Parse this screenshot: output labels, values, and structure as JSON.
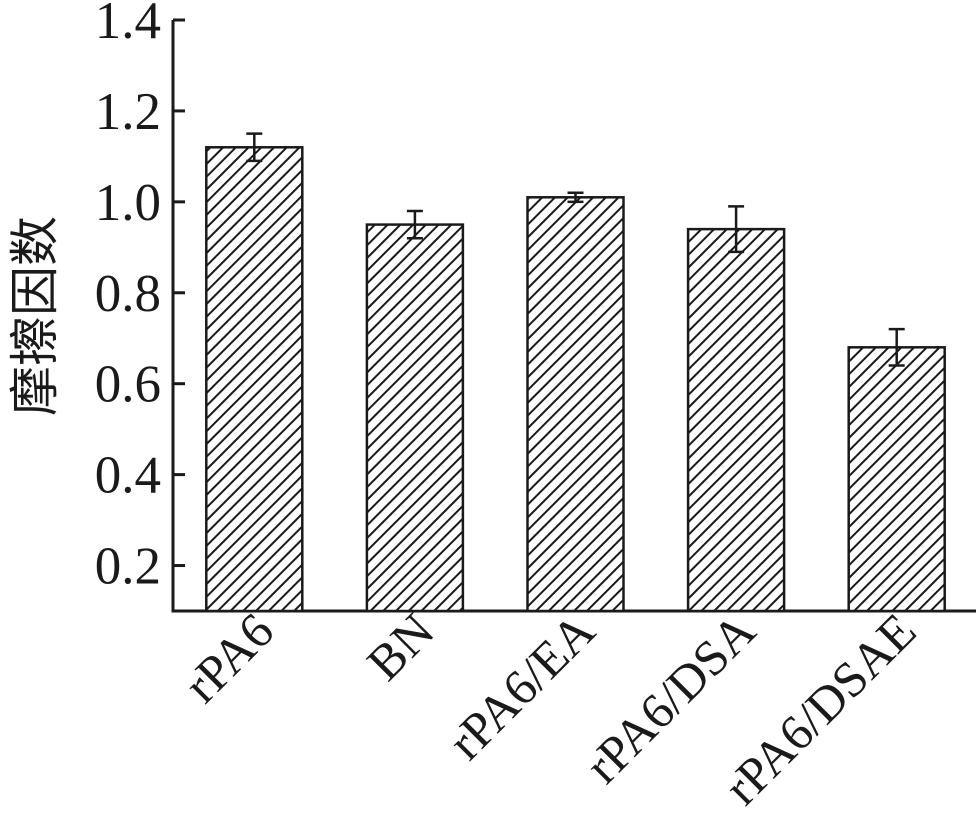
{
  "chart_data": {
    "type": "bar",
    "title": "",
    "xlabel": "",
    "ylabel": "摩擦因数",
    "categories": [
      "rPA6",
      "BN",
      "rPA6/EA",
      "rPA6/DSA",
      "rPA6/DSAE"
    ],
    "values": [
      1.12,
      0.95,
      1.01,
      0.94,
      0.68
    ],
    "error_bars": [
      0.03,
      0.03,
      0.01,
      0.05,
      0.04
    ],
    "ylim": [
      0.1,
      1.4
    ],
    "yticks": [
      "0.2",
      "0.4",
      "0.6",
      "0.8",
      "1.0",
      "1.2",
      "1.4"
    ],
    "bar_fill": "hatched",
    "grid": false,
    "legend": "none",
    "colors": {
      "bar_stroke": "#1a1a1a",
      "hatch": "#1a1a1a",
      "axis": "#1a1a1a",
      "background": "#ffffff"
    }
  }
}
